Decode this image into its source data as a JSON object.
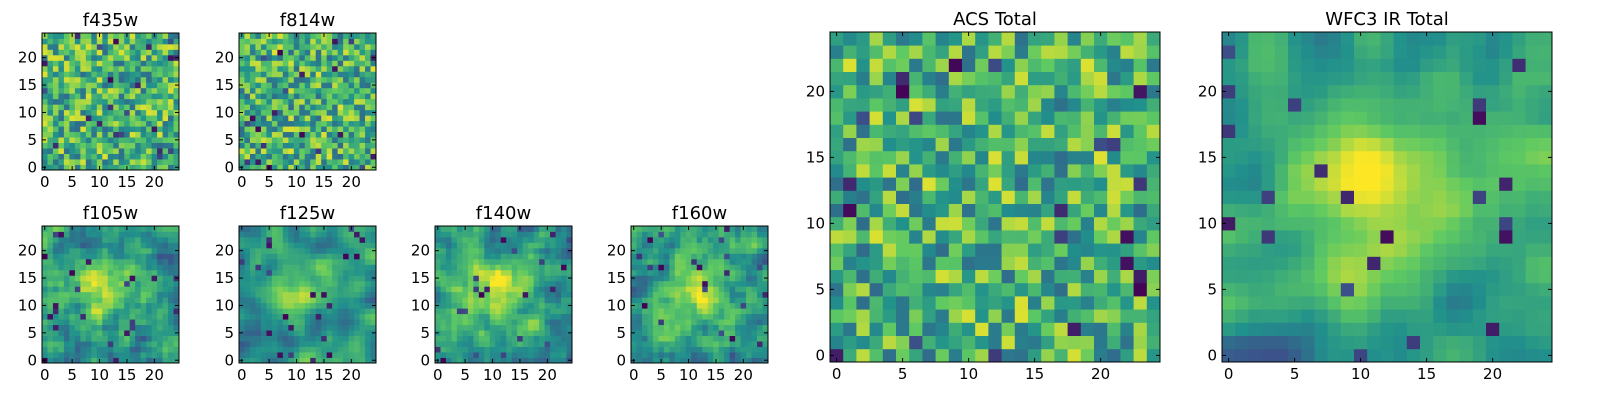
{
  "chart_data": [
    {
      "type": "heatmap",
      "title": "f435w",
      "xticks": [
        0,
        5,
        10,
        15,
        20
      ],
      "yticks": [
        0,
        5,
        10,
        15,
        20
      ],
      "xlim": [
        0,
        24
      ],
      "ylim": [
        0,
        24
      ],
      "grid_size": 25,
      "seed": 11,
      "smooth": 0
    },
    {
      "type": "heatmap",
      "title": "f814w",
      "xticks": [
        0,
        5,
        10,
        15,
        20
      ],
      "yticks": [
        0,
        5,
        10,
        15,
        20
      ],
      "xlim": [
        0,
        24
      ],
      "ylim": [
        0,
        24
      ],
      "grid_size": 25,
      "seed": 23,
      "smooth": 0
    },
    {
      "type": "heatmap",
      "title": "f105w",
      "xticks": [
        0,
        5,
        10,
        15,
        20
      ],
      "yticks": [
        0,
        5,
        10,
        15,
        20
      ],
      "xlim": [
        0,
        24
      ],
      "ylim": [
        0,
        24
      ],
      "grid_size": 25,
      "seed": 37,
      "smooth": 1
    },
    {
      "type": "heatmap",
      "title": "f125w",
      "xticks": [
        0,
        5,
        10,
        15,
        20
      ],
      "yticks": [
        0,
        5,
        10,
        15,
        20
      ],
      "xlim": [
        0,
        24
      ],
      "ylim": [
        0,
        24
      ],
      "grid_size": 25,
      "seed": 41,
      "smooth": 2
    },
    {
      "type": "heatmap",
      "title": "f140w",
      "xticks": [
        0,
        5,
        10,
        15,
        20
      ],
      "yticks": [
        0,
        5,
        10,
        15,
        20
      ],
      "xlim": [
        0,
        24
      ],
      "ylim": [
        0,
        24
      ],
      "grid_size": 25,
      "seed": 53,
      "smooth": 1
    },
    {
      "type": "heatmap",
      "title": "f160w",
      "xticks": [
        0,
        5,
        10,
        15,
        20
      ],
      "yticks": [
        0,
        5,
        10,
        15,
        20
      ],
      "xlim": [
        0,
        24
      ],
      "ylim": [
        0,
        24
      ],
      "grid_size": 25,
      "seed": 67,
      "smooth": 1
    },
    {
      "type": "heatmap",
      "title": "ACS Total",
      "xticks": [
        0,
        5,
        10,
        15,
        20
      ],
      "yticks": [
        0,
        5,
        10,
        15,
        20
      ],
      "xlim": [
        0,
        24
      ],
      "ylim": [
        0,
        24
      ],
      "grid_size": 25,
      "seed": 79,
      "smooth": 0
    },
    {
      "type": "heatmap",
      "title": "WFC3 IR Total",
      "xticks": [
        0,
        5,
        10,
        15,
        20
      ],
      "yticks": [
        0,
        5,
        10,
        15,
        20
      ],
      "xlim": [
        0,
        24
      ],
      "ylim": [
        0,
        24
      ],
      "grid_size": 25,
      "seed": 97,
      "smooth": 2
    }
  ],
  "colormap": [
    "#440154",
    "#3b528b",
    "#21918c",
    "#5ec962",
    "#fde725"
  ]
}
